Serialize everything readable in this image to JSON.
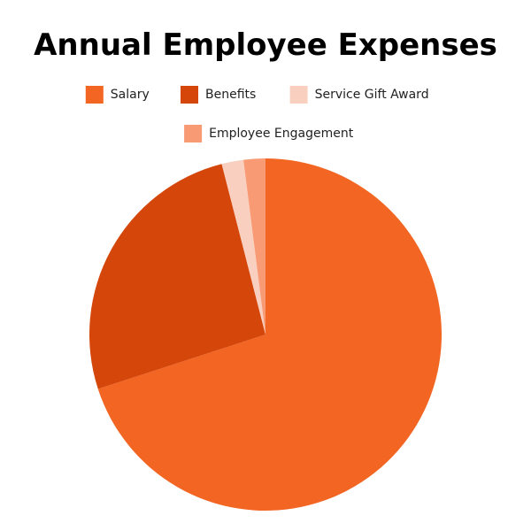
{
  "chart_data": {
    "type": "pie",
    "title": "Annual Employee Expenses",
    "categories": [
      "Salary",
      "Benefits",
      "Service Gift Award",
      "Employee Engagement"
    ],
    "values": [
      70,
      26,
      2,
      2
    ],
    "colors": [
      "#f26522",
      "#d4460a",
      "#f9d0c0",
      "#f89a74"
    ]
  }
}
